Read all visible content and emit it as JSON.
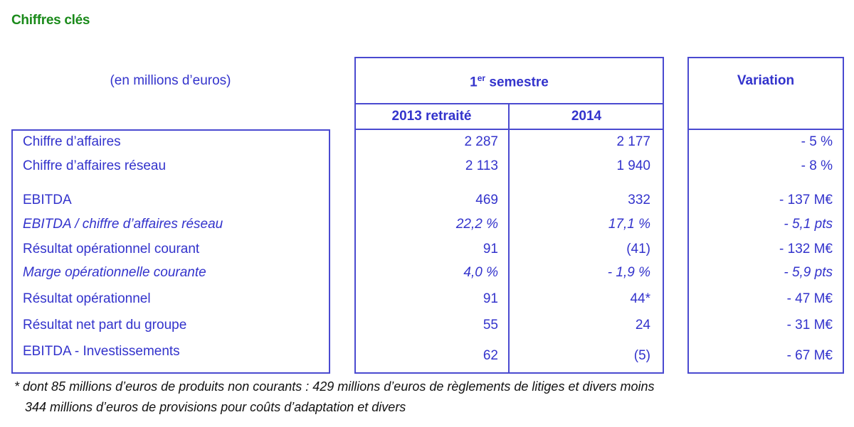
{
  "title": "Chiffres clés",
  "unit_label": "(en millions d’euros)",
  "header": {
    "period_prefix": "1",
    "period_sup": "er",
    "period_suffix": " semestre",
    "col1": "2013 retraité",
    "col2": "2014",
    "variation": "Variation"
  },
  "rows": [
    {
      "label": "Chiffre d’affaires",
      "v2013": "2 287",
      "v2014": "2 177",
      "variation": "- 5 %",
      "italic": false
    },
    {
      "label": "Chiffre d’affaires réseau",
      "v2013": "2 113",
      "v2014": "1 940",
      "variation": "- 8 %",
      "italic": false
    },
    {
      "label": "EBITDA",
      "v2013": "469",
      "v2014": "332",
      "variation": "- 137 M€",
      "italic": false
    },
    {
      "label": "EBITDA / chiffre d’affaires réseau",
      "v2013": "22,2 %",
      "v2014": "17,1 %",
      "variation": "- 5,1 pts",
      "italic": true
    },
    {
      "label": "Résultat opérationnel courant",
      "v2013": "91",
      "v2014": "(41)",
      "variation": "- 132 M€",
      "italic": false
    },
    {
      "label": "Marge opérationnelle courante",
      "v2013": "4,0 %",
      "v2014": "- 1,9 %",
      "variation": "- 5,9 pts",
      "italic": true
    },
    {
      "label": "Résultat opérationnel",
      "v2013": "91",
      "v2014": "44*",
      "variation": "- 47 M€",
      "italic": false
    },
    {
      "label": "Résultat net part du groupe",
      "v2013": "55",
      "v2014": "24",
      "variation": "- 31 M€",
      "italic": false
    },
    {
      "label": "EBITDA - Investissements",
      "v2013": "62",
      "v2014": "(5)",
      "variation": "- 67 M€",
      "italic": false
    }
  ],
  "footnote": [
    "* dont 85 millions d’euros de produits non courants : 429 millions d’euros de règlements de litiges et divers moins",
    "   344 millions d’euros de provisions pour coûts d’adaptation et divers"
  ]
}
